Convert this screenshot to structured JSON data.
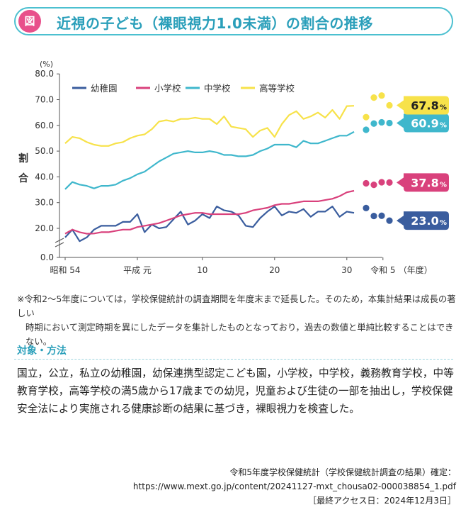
{
  "header": {
    "badge": "図",
    "title": "近視の子ども（裸眼視力1.0未満）の割合の推移"
  },
  "chart_data": {
    "type": "line",
    "unit": "(%)",
    "ylabel": "割\n合",
    "ylim": [
      0,
      80
    ],
    "yticks": [
      "0.0",
      "20.0",
      "30.0",
      "40.0",
      "50.0",
      "60.0",
      "70.0",
      "80.0"
    ],
    "axis_break": "//",
    "x_tick_labels": [
      {
        "x": 1979,
        "label": "昭和 54"
      },
      {
        "x": 1989,
        "label": "平成 元"
      },
      {
        "x": 1998,
        "label": "10"
      },
      {
        "x": 2008,
        "label": "20"
      },
      {
        "x": 2018,
        "label": "30"
      },
      {
        "x": 2023,
        "label": "令和 5"
      }
    ],
    "x_unit": "（年度）",
    "series": [
      {
        "name": "幼稚園",
        "color": "#3a5d9e",
        "years": [
          1979,
          1980,
          1981,
          1982,
          1983,
          1984,
          1985,
          1986,
          1987,
          1988,
          1989,
          1990,
          1991,
          1992,
          1993,
          1994,
          1995,
          1996,
          1997,
          1998,
          1999,
          2000,
          2001,
          2002,
          2003,
          2004,
          2005,
          2006,
          2007,
          2008,
          2009,
          2010,
          2011,
          2012,
          2013,
          2014,
          2015,
          2016,
          2017,
          2018,
          2019
        ],
        "values": [
          16.5,
          19.5,
          15.0,
          16.5,
          19.5,
          21.0,
          21.0,
          21.0,
          22.5,
          22.5,
          25.5,
          18.5,
          21.5,
          20.0,
          20.5,
          23.5,
          26.5,
          21.5,
          23.0,
          25.5,
          24.0,
          28.5,
          27.0,
          26.5,
          25.0,
          21.0,
          20.5,
          24.0,
          26.5,
          28.5,
          25.0,
          26.5,
          26.0,
          27.5,
          24.5,
          26.5,
          26.5,
          28.5,
          24.5,
          26.5,
          26.0
        ],
        "later": [
          {
            "year": 2020,
            "value": 27.9
          },
          {
            "year": 2021,
            "value": 24.8
          },
          {
            "year": 2022,
            "value": 24.9
          },
          {
            "year": 2023,
            "value": 23.0
          }
        ],
        "final_label": "23.0"
      },
      {
        "name": "小学校",
        "color": "#d9417c",
        "years": [
          1979,
          1980,
          1981,
          1982,
          1983,
          1984,
          1985,
          1986,
          1987,
          1988,
          1989,
          1990,
          1991,
          1992,
          1993,
          1994,
          1995,
          1996,
          1997,
          1998,
          1999,
          2000,
          2001,
          2002,
          2003,
          2004,
          2005,
          2006,
          2007,
          2008,
          2009,
          2010,
          2011,
          2012,
          2013,
          2014,
          2015,
          2016,
          2017,
          2018,
          2019
        ],
        "values": [
          17.9,
          19.5,
          18.5,
          17.9,
          18.0,
          18.5,
          18.5,
          19.0,
          19.5,
          19.5,
          20.5,
          21.0,
          21.5,
          22.0,
          23.0,
          24.0,
          25.0,
          25.5,
          26.0,
          26.0,
          25.5,
          25.5,
          25.5,
          25.5,
          25.5,
          26.0,
          27.0,
          27.5,
          28.0,
          29.0,
          29.5,
          29.5,
          30.0,
          30.5,
          30.5,
          30.5,
          31.0,
          31.5,
          32.5,
          34.0,
          34.6
        ],
        "later": [
          {
            "year": 2020,
            "value": 37.5
          },
          {
            "year": 2021,
            "value": 36.9
          },
          {
            "year": 2022,
            "value": 37.9
          },
          {
            "year": 2023,
            "value": 37.8
          }
        ],
        "final_label": "37.8"
      },
      {
        "name": "中学校",
        "color": "#3fb7cc",
        "years": [
          1979,
          1980,
          1981,
          1982,
          1983,
          1984,
          1985,
          1986,
          1987,
          1988,
          1989,
          1990,
          1991,
          1992,
          1993,
          1994,
          1995,
          1996,
          1997,
          1998,
          1999,
          2000,
          2001,
          2002,
          2003,
          2004,
          2005,
          2006,
          2007,
          2008,
          2009,
          2010,
          2011,
          2012,
          2013,
          2014,
          2015,
          2016,
          2017,
          2018,
          2019
        ],
        "values": [
          35.2,
          38.0,
          37.0,
          36.5,
          35.5,
          36.5,
          36.5,
          37.0,
          38.5,
          39.5,
          41.0,
          42.0,
          44.0,
          46.0,
          47.5,
          49.0,
          49.5,
          50.0,
          49.5,
          49.5,
          50.0,
          49.5,
          48.5,
          48.5,
          48.0,
          48.0,
          48.5,
          50.0,
          51.0,
          52.5,
          52.5,
          52.5,
          51.5,
          54.0,
          53.0,
          53.0,
          54.0,
          55.0,
          56.0,
          56.0,
          57.5
        ],
        "later": [
          {
            "year": 2020,
            "value": 58.3
          },
          {
            "year": 2021,
            "value": 60.7
          },
          {
            "year": 2022,
            "value": 61.2
          },
          {
            "year": 2023,
            "value": 60.9
          }
        ],
        "final_label": "60.9"
      },
      {
        "name": "高等学校",
        "color": "#f7e24a",
        "years": [
          1979,
          1980,
          1981,
          1982,
          1983,
          1984,
          1985,
          1986,
          1987,
          1988,
          1989,
          1990,
          1991,
          1992,
          1993,
          1994,
          1995,
          1996,
          1997,
          1998,
          1999,
          2000,
          2001,
          2002,
          2003,
          2004,
          2005,
          2006,
          2007,
          2008,
          2009,
          2010,
          2011,
          2012,
          2013,
          2014,
          2015,
          2016,
          2017,
          2018,
          2019
        ],
        "values": [
          53.0,
          55.5,
          55.0,
          53.5,
          52.5,
          52.0,
          52.0,
          53.0,
          53.5,
          55.0,
          56.0,
          56.5,
          58.5,
          61.5,
          62.0,
          61.5,
          62.5,
          62.5,
          63.0,
          62.5,
          62.5,
          60.5,
          63.5,
          59.5,
          59.0,
          58.5,
          55.5,
          58.0,
          59.0,
          55.5,
          60.5,
          64.0,
          65.5,
          62.5,
          63.5,
          65.0,
          63.0,
          66.0,
          62.5,
          67.5,
          67.6
        ],
        "later": [
          {
            "year": 2020,
            "value": 63.2
          },
          {
            "year": 2021,
            "value": 70.8
          },
          {
            "year": 2022,
            "value": 71.6
          },
          {
            "year": 2023,
            "value": 67.8
          }
        ],
        "final_label": "67.8"
      }
    ]
  },
  "notes": {
    "line1": "※令和2～5年度については，学校保健統計の調査期間を年度末まで延長した。そのため，本集計結果は成長の著しい",
    "line2": "時期において測定時期を異にしたデータを集計したものとなっており，過去の数値と単純比較することはできない。"
  },
  "method": {
    "heading": "対象・方法",
    "body": "国立，公立，私立の幼稚園，幼保連携型認定こども園，小学校，中学校，義務教育学校，中等教育学校，高等学校の満5歳から17歳までの幼児，児童および生徒の一部を抽出し，学校保健安全法により実施される健康診断の結果に基づき，裸眼視力を検査した。"
  },
  "source": {
    "line1": "令和5年度学校保健統計（学校保健統計調査の結果）確定：",
    "line2": "https://www.mext.go.jp/content/20241127-mxt_chousa02-000038854_1.pdf",
    "line3": "［最終アクセス日：2024年12月3日］"
  }
}
